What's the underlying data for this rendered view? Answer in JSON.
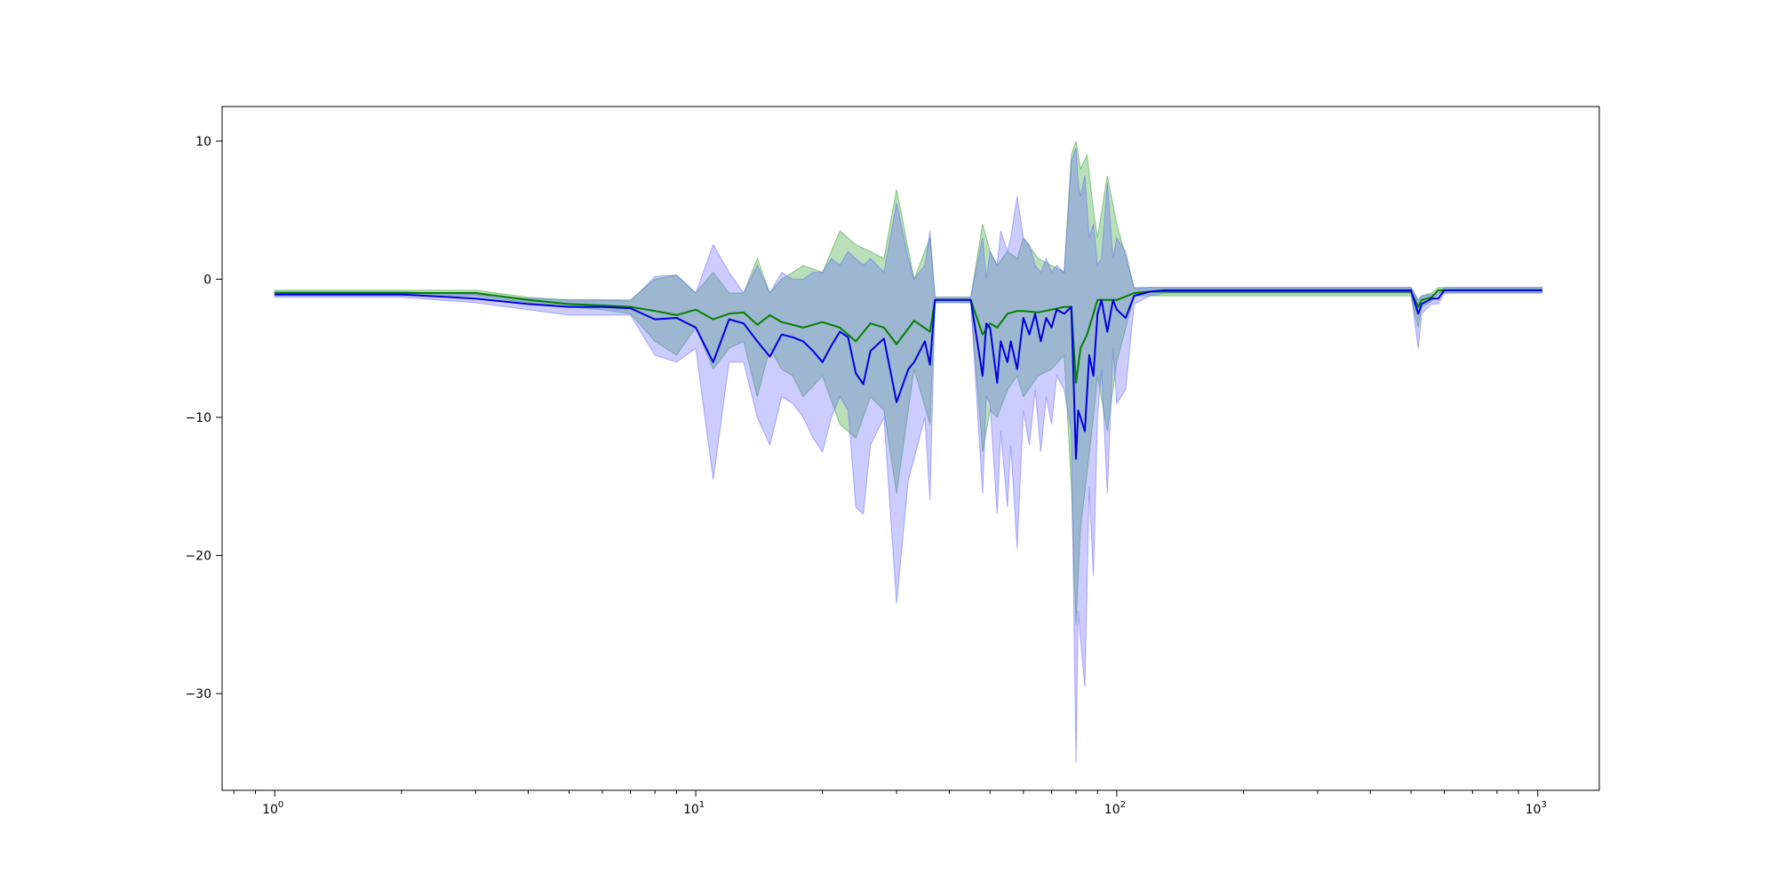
{
  "chart_data": {
    "type": "line",
    "title": "",
    "xlabel": "",
    "ylabel": "",
    "xscale": "log",
    "xlim": [
      0.75,
      1400
    ],
    "ylim": [
      -37,
      12.5
    ],
    "grid": false,
    "legend": "none",
    "x_ticks": [
      {
        "base": "10",
        "exp": "0",
        "value": 1
      },
      {
        "base": "10",
        "exp": "1",
        "value": 10
      },
      {
        "base": "10",
        "exp": "2",
        "value": 100
      },
      {
        "base": "10",
        "exp": "3",
        "value": 1000
      }
    ],
    "y_ticks": [
      {
        "label": "10",
        "value": 10
      },
      {
        "label": "0",
        "value": 0
      },
      {
        "label": "−10",
        "value": -10
      },
      {
        "label": "−20",
        "value": -20
      },
      {
        "label": "−30",
        "value": -30
      }
    ],
    "series": [
      {
        "color": "#008000",
        "band_color": "#2ca02c",
        "x": [
          1,
          2,
          3,
          4,
          5,
          6,
          7,
          8,
          9,
          10,
          11,
          12,
          13,
          14,
          15,
          16,
          17,
          18,
          20,
          22,
          24,
          26,
          28,
          30,
          33,
          36,
          37,
          40,
          45,
          48,
          50,
          52,
          55,
          58,
          60,
          65,
          70,
          75,
          78,
          80,
          82,
          85,
          88,
          90,
          95,
          100,
          110,
          120,
          150,
          200,
          300,
          400,
          500,
          520,
          530,
          560,
          580,
          600,
          800,
          1024
        ],
        "y": [
          -1.0,
          -1.0,
          -1.0,
          -1.5,
          -1.8,
          -1.9,
          -2.0,
          -2.3,
          -2.6,
          -2.2,
          -2.9,
          -2.5,
          -2.4,
          -3.3,
          -2.6,
          -3.1,
          -3.3,
          -3.5,
          -3.1,
          -3.5,
          -4.5,
          -3.2,
          -3.5,
          -4.7,
          -3.0,
          -3.8,
          -1.5,
          -1.5,
          -1.5,
          -4.0,
          -3.2,
          -3.5,
          -2.5,
          -2.3,
          -2.3,
          -2.4,
          -2.2,
          -2.0,
          -2.0,
          -7.5,
          -5.0,
          -4.0,
          -2.5,
          -1.5,
          -1.5,
          -1.5,
          -1.0,
          -0.9,
          -0.9,
          -0.9,
          -0.9,
          -0.9,
          -0.9,
          -2.0,
          -1.5,
          -1.3,
          -0.8,
          -0.8,
          -0.8,
          -0.8
        ],
        "upper": [
          -0.8,
          -0.8,
          -0.8,
          -1.3,
          -1.5,
          -1.5,
          -1.5,
          0.0,
          0.3,
          -1.0,
          0.5,
          -1.0,
          -1.0,
          1.5,
          -1.0,
          0.0,
          0.5,
          1.0,
          0.5,
          3.5,
          2.5,
          2.0,
          1.5,
          6.5,
          0.0,
          3.0,
          -1.3,
          -1.3,
          -1.3,
          4.0,
          2.0,
          1.0,
          2.0,
          1.5,
          3.0,
          1.5,
          1.0,
          0.5,
          9.0,
          10.0,
          8.0,
          9.0,
          5.0,
          3.0,
          7.5,
          4.0,
          -0.6,
          -0.6,
          -0.6,
          -0.6,
          -0.6,
          -0.6,
          -0.6,
          -1.5,
          -1.2,
          -1.0,
          -0.6,
          -0.6,
          -0.6,
          -0.6
        ],
        "lower": [
          -1.2,
          -1.2,
          -1.2,
          -1.7,
          -2.0,
          -2.2,
          -2.5,
          -4.5,
          -5.5,
          -3.5,
          -6.5,
          -5.0,
          -4.5,
          -8.5,
          -5.0,
          -6.5,
          -7.0,
          -8.5,
          -7.0,
          -10.5,
          -11.5,
          -8.5,
          -9.5,
          -15.5,
          -6.5,
          -10.5,
          -1.7,
          -1.7,
          -1.7,
          -12.5,
          -9.5,
          -10.0,
          -8.0,
          -7.0,
          -8.5,
          -7.0,
          -6.5,
          -5.5,
          -15.0,
          -25.0,
          -18.0,
          -14.0,
          -10.0,
          -7.0,
          -11.0,
          -6.0,
          -1.2,
          -1.2,
          -1.2,
          -1.2,
          -1.2,
          -1.2,
          -1.2,
          -3.5,
          -2.0,
          -1.6,
          -1.0,
          -1.0,
          -1.0,
          -1.0
        ]
      },
      {
        "color": "#0000e0",
        "band_color": "#6464ff",
        "x": [
          1,
          2,
          3,
          4,
          5,
          6,
          7,
          8,
          9,
          10,
          11,
          12,
          13,
          14,
          15,
          16,
          17,
          18,
          19,
          20,
          21,
          22,
          23,
          24,
          25,
          26,
          28,
          30,
          32,
          33,
          35,
          36,
          37,
          40,
          45,
          48,
          49,
          50,
          52,
          53,
          55,
          56,
          58,
          60,
          62,
          64,
          66,
          68,
          70,
          72,
          75,
          78,
          80,
          81,
          82,
          84,
          86,
          88,
          90,
          92,
          95,
          98,
          100,
          105,
          110,
          120,
          130,
          150,
          200,
          300,
          400,
          500,
          520,
          530,
          560,
          580,
          600,
          800,
          1024
        ],
        "y": [
          -1.1,
          -1.1,
          -1.4,
          -1.8,
          -2.0,
          -2.0,
          -2.1,
          -2.9,
          -2.8,
          -3.5,
          -6.0,
          -2.9,
          -3.2,
          -4.5,
          -5.6,
          -4.0,
          -4.2,
          -4.5,
          -5.2,
          -6.0,
          -4.8,
          -3.8,
          -4.2,
          -6.8,
          -7.6,
          -5.2,
          -4.3,
          -8.9,
          -6.5,
          -6.0,
          -4.5,
          -6.2,
          -1.5,
          -1.5,
          -1.5,
          -7.0,
          -3.2,
          -3.5,
          -7.5,
          -4.5,
          -6.0,
          -4.5,
          -6.5,
          -2.8,
          -4.0,
          -2.5,
          -4.5,
          -2.8,
          -3.5,
          -2.2,
          -2.5,
          -2.0,
          -13.0,
          -9.5,
          -10.0,
          -11.0,
          -5.5,
          -7.0,
          -2.5,
          -1.5,
          -3.8,
          -1.5,
          -2.2,
          -2.8,
          -1.2,
          -0.9,
          -0.8,
          -0.8,
          -0.8,
          -0.8,
          -0.8,
          -0.8,
          -2.5,
          -1.8,
          -1.4,
          -1.4,
          -0.8,
          -0.8,
          -0.8
        ],
        "upper": [
          -0.9,
          -0.9,
          -1.1,
          -1.4,
          -1.5,
          -1.5,
          -1.6,
          0.2,
          0.3,
          -1.0,
          2.5,
          0.5,
          -1.0,
          1.0,
          -1.0,
          0.5,
          0.0,
          0.0,
          0.5,
          0.5,
          1.5,
          1.0,
          2.0,
          1.5,
          1.0,
          1.5,
          0.5,
          5.5,
          1.5,
          0.0,
          1.0,
          3.5,
          -1.3,
          -1.3,
          -1.3,
          3.0,
          0.0,
          2.0,
          1.0,
          3.5,
          2.0,
          3.0,
          6.0,
          3.0,
          2.5,
          1.0,
          0.5,
          1.5,
          0.5,
          1.0,
          0.5,
          8.5,
          9.5,
          7.0,
          6.0,
          7.5,
          3.0,
          4.0,
          1.0,
          1.5,
          7.0,
          1.5,
          3.0,
          2.0,
          -0.7,
          -0.6,
          -0.6,
          -0.6,
          -0.6,
          -0.6,
          -0.6,
          -0.6,
          -1.5,
          -1.2,
          -1.1,
          -1.1,
          -0.6,
          -0.6,
          -0.6
        ],
        "lower": [
          -1.3,
          -1.3,
          -1.7,
          -2.2,
          -2.6,
          -2.6,
          -2.6,
          -5.5,
          -6.0,
          -5.0,
          -14.5,
          -6.0,
          -6.0,
          -10.0,
          -12.0,
          -8.5,
          -9.0,
          -10.0,
          -11.5,
          -12.5,
          -10.0,
          -8.5,
          -9.5,
          -16.5,
          -17.0,
          -12.0,
          -10.0,
          -23.5,
          -14.5,
          -13.0,
          -10.0,
          -16.0,
          -1.7,
          -1.7,
          -1.7,
          -15.5,
          -8.5,
          -9.0,
          -17.0,
          -11.0,
          -16.5,
          -12.0,
          -19.5,
          -9.5,
          -12.0,
          -8.0,
          -12.5,
          -8.5,
          -10.5,
          -7.0,
          -8.0,
          -11.0,
          -35.0,
          -24.0,
          -26.0,
          -29.5,
          -15.0,
          -21.5,
          -10.0,
          -6.5,
          -15.5,
          -5.0,
          -9.0,
          -8.0,
          -1.8,
          -1.2,
          -1.0,
          -1.0,
          -1.0,
          -1.0,
          -1.0,
          -1.0,
          -5.0,
          -2.5,
          -1.8,
          -1.8,
          -1.0,
          -1.0,
          -1.0
        ]
      }
    ]
  }
}
